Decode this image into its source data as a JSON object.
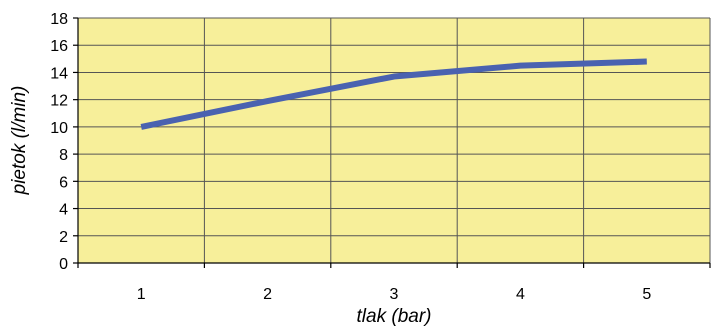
{
  "chart_data": {
    "type": "line",
    "title": "",
    "xlabel": "tlak (bar)",
    "ylabel": "pietok (l/min)",
    "x": [
      1,
      2,
      3,
      4,
      5
    ],
    "categories": [
      "1",
      "2",
      "3",
      "4",
      "5"
    ],
    "series": [
      {
        "values": [
          10.0,
          11.9,
          13.7,
          14.5,
          14.8
        ]
      }
    ],
    "ylim": [
      0,
      18
    ],
    "yticks": [
      0,
      2,
      4,
      6,
      8,
      10,
      12,
      14,
      16,
      18
    ],
    "grid": true,
    "legend": "none",
    "colors": {
      "plot_background": "#f7ef9a",
      "line": "#4a62b0",
      "grid": "#555555"
    }
  }
}
